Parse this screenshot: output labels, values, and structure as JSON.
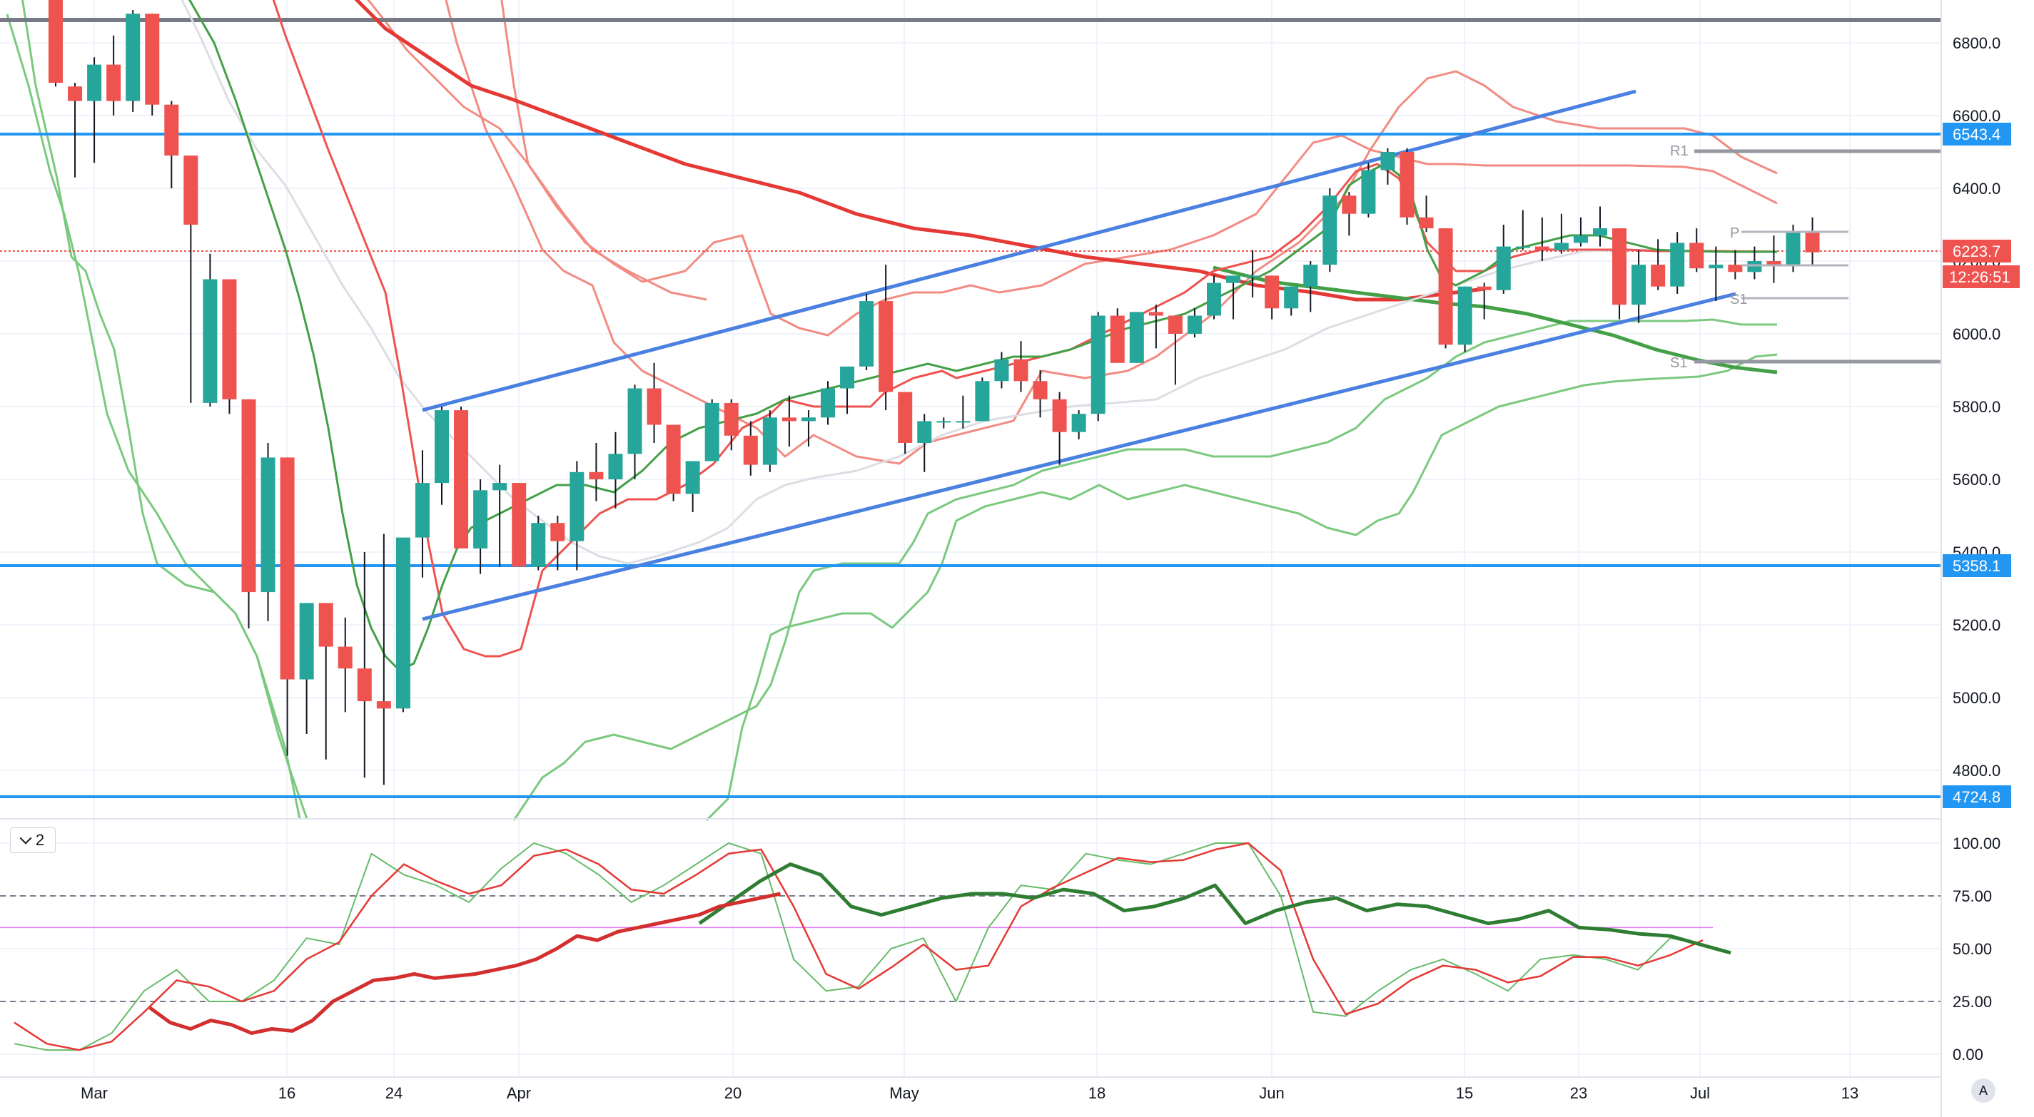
{
  "chart_data": {
    "type": "candlestick",
    "panes": [
      {
        "name": "price",
        "ylim": [
          4700,
          6950
        ]
      },
      {
        "name": "oscillator",
        "ylim": [
          -7,
          108
        ]
      }
    ],
    "price_axis_ticks": [
      "6800.0",
      "6600.0",
      "6400.0",
      "6200.0",
      "6000.0",
      "5800.0",
      "5600.0",
      "5400.0",
      "5200.0",
      "5000.0",
      "4800.0"
    ],
    "osc_axis_ticks": [
      "100.00",
      "75.00",
      "50.00",
      "25.00",
      "0.00"
    ],
    "x_tick_labels": [
      "Mar",
      "16",
      "24",
      "Apr",
      "20",
      "May",
      "18",
      "Jun",
      "15",
      "23",
      "Jul",
      "13"
    ],
    "price_tags": {
      "level_6543": "6543.4",
      "current_price": "6223.7",
      "countdown": "12:26:51",
      "level_5358": "5358.1",
      "level_4724": "4724.8"
    },
    "pivot_labels": {
      "r1": "R1",
      "p": "P",
      "s1": "S1",
      "s1b": "S1"
    },
    "osc_period": "2",
    "auto_label": "A",
    "candles": [
      [
        6960,
        6990,
        6680,
        6690
      ],
      [
        6680,
        6690,
        6430,
        6640
      ],
      [
        6640,
        6760,
        6470,
        6740
      ],
      [
        6740,
        6820,
        6600,
        6640
      ],
      [
        6640,
        6890,
        6610,
        6880
      ],
      [
        6880,
        6880,
        6600,
        6630
      ],
      [
        6630,
        6640,
        6400,
        6490
      ],
      [
        6490,
        6490,
        5810,
        6300
      ],
      [
        5810,
        6220,
        5800,
        6150
      ],
      [
        6150,
        6150,
        5780,
        5820
      ],
      [
        5820,
        5820,
        5190,
        5290
      ],
      [
        5290,
        5700,
        5210,
        5660
      ],
      [
        5660,
        5660,
        4840,
        5050
      ],
      [
        5050,
        5260,
        4900,
        5260
      ],
      [
        5260,
        5260,
        4830,
        5140
      ],
      [
        5140,
        5220,
        4960,
        5080
      ],
      [
        5080,
        5400,
        4780,
        4990
      ],
      [
        4990,
        5450,
        4760,
        4970
      ],
      [
        4970,
        5420,
        4960,
        5440
      ],
      [
        5440,
        5680,
        5330,
        5590
      ],
      [
        5590,
        5800,
        5530,
        5790
      ],
      [
        5790,
        5800,
        5430,
        5410
      ],
      [
        5410,
        5600,
        5340,
        5570
      ],
      [
        5570,
        5640,
        5360,
        5590
      ],
      [
        5590,
        5590,
        5360,
        5360
      ],
      [
        5360,
        5500,
        5350,
        5480
      ],
      [
        5480,
        5500,
        5350,
        5430
      ],
      [
        5430,
        5650,
        5350,
        5620
      ],
      [
        5620,
        5700,
        5540,
        5600
      ],
      [
        5600,
        5730,
        5520,
        5670
      ],
      [
        5670,
        5860,
        5600,
        5850
      ],
      [
        5850,
        5920,
        5700,
        5750
      ],
      [
        5750,
        5750,
        5540,
        5560
      ],
      [
        5560,
        5650,
        5510,
        5650
      ],
      [
        5650,
        5820,
        5650,
        5810
      ],
      [
        5810,
        5820,
        5680,
        5720
      ],
      [
        5720,
        5760,
        5610,
        5640
      ],
      [
        5640,
        5790,
        5620,
        5770
      ],
      [
        5770,
        5830,
        5690,
        5760
      ],
      [
        5760,
        5790,
        5690,
        5770
      ],
      [
        5770,
        5870,
        5750,
        5850
      ],
      [
        5850,
        5900,
        5780,
        5910
      ],
      [
        5910,
        6110,
        5900,
        6090
      ],
      [
        6090,
        6190,
        5790,
        5840
      ],
      [
        5840,
        5840,
        5670,
        5700
      ],
      [
        5700,
        5780,
        5620,
        5760
      ],
      [
        5760,
        5770,
        5740,
        5760
      ],
      [
        5760,
        5830,
        5740,
        5760
      ],
      [
        5760,
        5880,
        5760,
        5870
      ],
      [
        5870,
        5950,
        5850,
        5930
      ],
      [
        5930,
        5980,
        5840,
        5870
      ],
      [
        5870,
        5900,
        5770,
        5820
      ],
      [
        5820,
        5840,
        5640,
        5730
      ],
      [
        5730,
        5790,
        5710,
        5780
      ],
      [
        5780,
        6060,
        5760,
        6050
      ],
      [
        6050,
        6070,
        5930,
        5920
      ],
      [
        5920,
        6060,
        5920,
        6060
      ],
      [
        6060,
        6080,
        5960,
        6050
      ],
      [
        6050,
        6050,
        5860,
        6000
      ],
      [
        6000,
        6070,
        5990,
        6050
      ],
      [
        6050,
        6160,
        6040,
        6140
      ],
      [
        6140,
        6160,
        6040,
        6160
      ],
      [
        6160,
        6230,
        6100,
        6160
      ],
      [
        6160,
        6160,
        6040,
        6070
      ],
      [
        6070,
        6130,
        6050,
        6130
      ],
      [
        6130,
        6200,
        6060,
        6190
      ],
      [
        6190,
        6400,
        6170,
        6380
      ],
      [
        6380,
        6390,
        6270,
        6330
      ],
      [
        6330,
        6470,
        6320,
        6450
      ],
      [
        6450,
        6510,
        6410,
        6500
      ],
      [
        6500,
        6510,
        6300,
        6320
      ],
      [
        6320,
        6380,
        6280,
        6290
      ],
      [
        6290,
        6290,
        5960,
        5970
      ],
      [
        5970,
        6130,
        5950,
        6130
      ],
      [
        6130,
        6140,
        6040,
        6120
      ],
      [
        6120,
        6300,
        6110,
        6240
      ],
      [
        6240,
        6340,
        6230,
        6240
      ],
      [
        6240,
        6320,
        6200,
        6230
      ],
      [
        6230,
        6330,
        6220,
        6250
      ],
      [
        6250,
        6320,
        6240,
        6270
      ],
      [
        6270,
        6350,
        6240,
        6290
      ],
      [
        6290,
        6290,
        6040,
        6080
      ],
      [
        6080,
        6230,
        6030,
        6190
      ],
      [
        6190,
        6260,
        6120,
        6130
      ],
      [
        6130,
        6280,
        6110,
        6250
      ],
      [
        6250,
        6290,
        6170,
        6180
      ],
      [
        6180,
        6240,
        6090,
        6190
      ],
      [
        6190,
        6230,
        6150,
        6170
      ],
      [
        6170,
        6240,
        6150,
        6200
      ],
      [
        6200,
        6270,
        6140,
        6190
      ],
      [
        6190,
        6300,
        6170,
        6280
      ],
      [
        6280,
        6320,
        6190,
        6224
      ]
    ],
    "series": [
      {
        "name": "Short MA (green)",
        "color": "#4caf50",
        "values": [
          6720,
          6690,
          6640,
          6560,
          6430,
          6250,
          6030,
          5800,
          5560,
          5320,
          5120,
          5040,
          5050,
          5150,
          5290,
          5440,
          5570,
          5660,
          5700,
          5710,
          5710,
          5760,
          5820,
          5880,
          5880,
          5870,
          5880,
          5930,
          5980,
          6040,
          6080,
          6120,
          6150,
          6160,
          6170,
          6150,
          6120,
          6130,
          6180,
          6230,
          6240,
          6250,
          6230,
          6210,
          6215,
          6220,
          6222
        ]
      },
      {
        "name": "Short MA (red)",
        "color": "#ef5350",
        "values": [
          7300,
          6880,
          6580,
          6250,
          5920,
          5580,
          5300,
          5080,
          5020,
          5090,
          5230,
          5390,
          5510,
          5580,
          5640,
          5700,
          5730,
          5730,
          5740,
          5810,
          5820,
          5850,
          5880,
          5950,
          6000,
          6050,
          6080,
          6070,
          5990,
          5940,
          5970,
          6020,
          6100,
          6180,
          6230,
          6230,
          6220,
          6205,
          6200,
          6210,
          6214
        ]
      },
      {
        "name": "Slow MA (light gray)",
        "color": "#c8cbd0",
        "values": [
          7300,
          6950,
          6600,
          6300,
          6000,
          5800,
          5650,
          5520,
          5440,
          5380,
          5380,
          5400,
          5460,
          5520,
          5580,
          5640,
          5680,
          5720,
          5760,
          5800,
          5820,
          5850,
          5880,
          5930,
          5980,
          6030,
          6080,
          6110,
          6140,
          6170,
          6190,
          6200,
          6205
        ]
      },
      {
        "name": "Long MA (red)",
        "color": "#e85c5c",
        "values": [
          7100,
          6900,
          6700,
          6550,
          6450,
          6350,
          6270,
          6220,
          6200,
          6190,
          6180,
          6170,
          6160,
          6140,
          6120
        ]
      },
      {
        "name": "Long MA (green)",
        "color": "#43a047",
        "values": [
          6150,
          6100,
          6050,
          6000,
          5950,
          5900
        ]
      },
      {
        "name": "Stochastic %K",
        "color": "#66bb6a",
        "values": [
          5,
          2,
          2,
          10,
          30,
          40,
          25,
          25,
          35,
          55,
          52,
          95,
          85,
          80,
          72,
          88,
          100,
          95,
          85,
          72,
          80,
          90,
          100,
          95,
          45,
          30,
          32,
          50,
          55,
          25,
          60,
          80,
          78,
          95,
          92,
          90,
          95,
          100,
          100,
          75,
          20,
          18,
          30,
          40,
          45,
          38,
          30,
          45,
          47,
          45,
          40,
          55,
          52
        ]
      },
      {
        "name": "Stochastic %D",
        "color": "#e53935",
        "values": [
          15,
          5,
          2,
          6,
          20,
          35,
          32,
          25,
          30,
          45,
          53,
          75,
          90,
          82,
          76,
          80,
          94,
          97,
          90,
          78,
          76,
          85,
          95,
          97,
          70,
          38,
          31,
          41,
          52,
          40,
          42,
          70,
          79,
          86,
          93,
          91,
          92,
          97,
          100,
          87,
          45,
          19,
          24,
          35,
          42,
          40,
          34,
          37,
          46,
          46,
          42,
          47,
          54
        ]
      },
      {
        "name": "Oscillator line (dark green)",
        "color": "#2e7d32",
        "values": [
          62,
          72,
          82,
          90,
          85,
          70,
          66,
          70,
          74,
          76,
          76,
          74,
          78,
          76,
          68,
          70,
          74,
          80,
          62,
          68,
          72,
          74,
          68,
          71,
          70,
          66,
          62,
          64,
          68,
          60,
          59,
          57,
          56,
          52,
          48
        ]
      },
      {
        "name": "Oscillator line (dark red)",
        "color": "#d32f2f",
        "values": [
          22,
          15,
          12,
          16,
          14,
          10,
          12,
          11,
          16,
          25,
          30,
          35,
          36,
          38,
          36,
          37,
          38,
          40,
          42,
          45,
          50,
          56,
          54,
          58,
          60,
          62,
          64,
          66,
          70,
          72,
          74,
          76
        ]
      }
    ]
  }
}
